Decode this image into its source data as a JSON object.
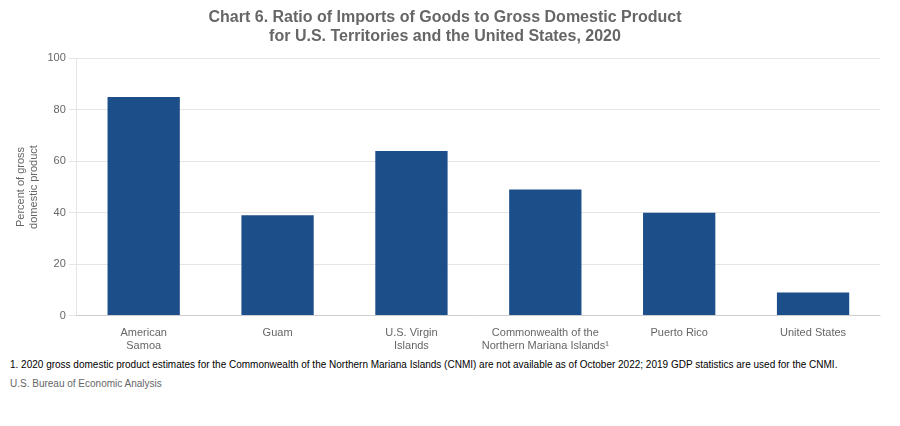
{
  "chart_data": {
    "type": "bar",
    "title": "Chart 6. Ratio of Imports of Goods to Gross Domestic Product\nfor U.S. Territories and the United States, 2020",
    "ylabel": "Percent of gross\ndomestic product",
    "categories": [
      "American\nSamoa",
      "Guam",
      "U.S. Virgin\nIslands",
      "Commonwealth of the\nNorthern Mariana Islands¹",
      "Puerto Rico",
      "United States"
    ],
    "values": [
      85,
      39,
      64,
      49,
      40,
      9
    ],
    "color": "#1C4E8A",
    "ylim": [
      0,
      100
    ],
    "yticks": [
      0,
      20,
      40,
      60,
      80,
      100
    ],
    "grid": true,
    "footnote": "1. 2020 gross domestic product estimates for the Commonwealth of the Northern Mariana Islands (CNMI) are not available as of October 2022; 2019 GDP statistics are used for the CNMI.",
    "source": "U.S. Bureau of Economic Analysis"
  }
}
